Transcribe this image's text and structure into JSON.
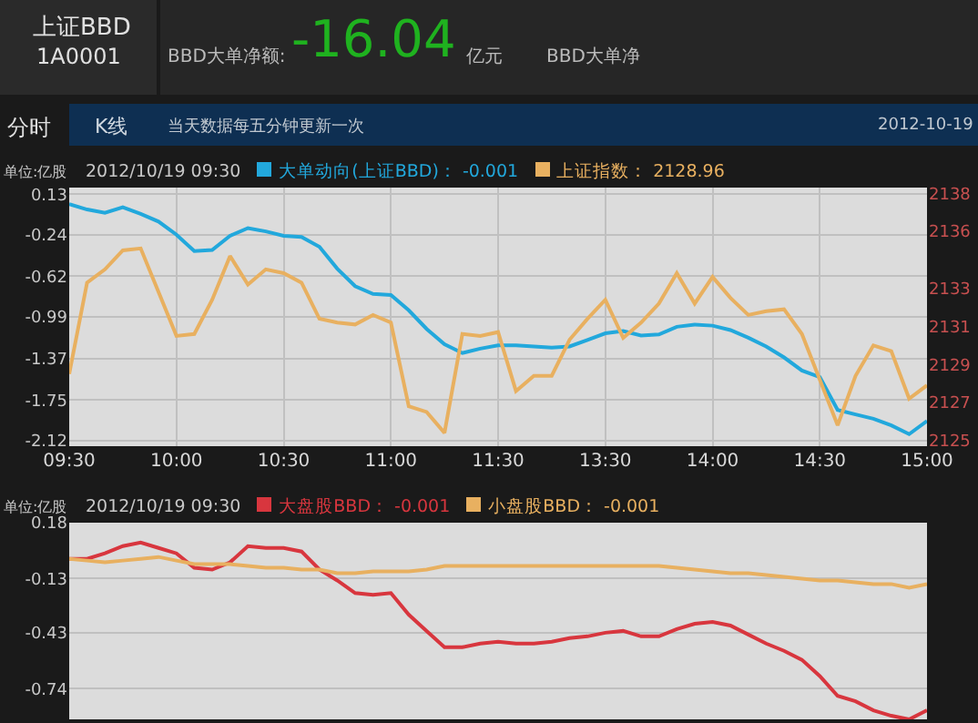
{
  "chart_data": [
    {
      "type": "other",
      "annotations": [
        "上证BBD",
        "1A0001",
        "BBD大单净额:",
        "-16.04",
        "亿元",
        "BBD大单净",
        "分时",
        "K线",
        "当天数据每五分钟更新一次",
        "2012-10-19"
      ]
    },
    {
      "type": "line",
      "ylabel": "单位:亿股",
      "legend_title": "2012/10/19 09:30",
      "legend": "top left",
      "grid": true,
      "marker": "none",
      "line_style": "solid",
      "categories": [
        "09:30",
        null,
        null,
        null,
        null,
        null,
        "10:00",
        null,
        null,
        null,
        null,
        null,
        "10:30",
        null,
        null,
        null,
        null,
        null,
        "11:00",
        null,
        null,
        null,
        null,
        null,
        "11:30",
        null,
        null,
        null,
        null,
        null,
        "13:30",
        null,
        null,
        null,
        null,
        null,
        "14:00",
        null,
        null,
        null,
        null,
        null,
        "14:30",
        null,
        null,
        null,
        null,
        null,
        "15:00"
      ],
      "ylim": [
        -2.17,
        0.19
      ],
      "yticks": [
        0.13,
        -0.24,
        -0.62,
        -0.99,
        -1.37,
        -1.75,
        -2.12
      ],
      "y2lim": [
        2124.7,
        2138.3
      ],
      "y2ticks": [
        2125,
        2127,
        2129,
        2131,
        2133,
        2136,
        2138
      ],
      "series": [
        {
          "name": "大单动向(上证BBD)： -0.001",
          "color": "#22a8dc",
          "values": [
            0.04,
            -0.01,
            -0.04,
            0.01,
            -0.05,
            -0.12,
            -0.24,
            -0.39,
            -0.38,
            -0.25,
            -0.18,
            -0.21,
            -0.25,
            -0.26,
            -0.35,
            -0.55,
            -0.71,
            -0.78,
            -0.79,
            -0.93,
            -1.1,
            -1.24,
            -1.32,
            -1.28,
            -1.25,
            -1.25,
            -1.26,
            -1.27,
            -1.26,
            -1.2,
            -1.14,
            -1.12,
            -1.16,
            -1.15,
            -1.08,
            -1.06,
            -1.07,
            -1.11,
            -1.18,
            -1.26,
            -1.36,
            -1.48,
            -1.54,
            -1.84,
            -1.88,
            -1.92,
            -1.98,
            -2.06,
            -1.94
          ]
        },
        {
          "name": "上证指数： 2128.96",
          "color": "#e8b060",
          "axis": "y2",
          "values": [
            2128.5,
            2133.3,
            2134.0,
            2135.0,
            2135.1,
            2132.8,
            2130.5,
            2130.6,
            2132.4,
            2134.7,
            2133.2,
            2134.0,
            2133.8,
            2133.3,
            2131.4,
            2131.2,
            2131.1,
            2131.6,
            2131.2,
            2126.8,
            2126.5,
            2125.4,
            2130.6,
            2130.5,
            2130.7,
            2127.6,
            2128.4,
            2128.4,
            2130.3,
            2131.4,
            2132.4,
            2130.4,
            2131.2,
            2132.2,
            2133.8,
            2132.2,
            2133.6,
            2132.5,
            2131.6,
            2131.8,
            2131.9,
            2130.6,
            2128.2,
            2125.8,
            2128.4,
            2130.0,
            2129.7,
            2127.2,
            2127.9
          ]
        }
      ]
    },
    {
      "type": "line",
      "ylabel": "单位:亿股",
      "legend_title": "2012/10/19 09:30",
      "legend": "top left",
      "grid": "y",
      "marker": "none",
      "line_style": "solid",
      "tick_labels": "y",
      "categories": [
        null,
        null,
        null,
        null,
        null,
        null,
        null,
        null,
        null,
        null,
        null,
        null,
        null,
        null,
        null,
        null,
        null,
        null,
        null,
        null,
        null,
        null,
        null,
        null,
        null,
        null,
        null,
        null,
        null,
        null,
        null,
        null,
        null,
        null,
        null,
        null,
        null,
        null,
        null,
        null,
        null,
        null,
        null,
        null,
        null,
        null,
        null,
        null,
        null
      ],
      "ylim": [
        -0.91,
        0.18
      ],
      "yticks": [
        0.18,
        -0.13,
        -0.43,
        -0.74
      ],
      "series": [
        {
          "name": "大盘股BBD： -0.001",
          "color": "#d8363e",
          "values": [
            -0.02,
            -0.02,
            0.01,
            0.05,
            0.07,
            0.04,
            0.01,
            -0.07,
            -0.08,
            -0.04,
            0.05,
            0.04,
            0.04,
            0.02,
            -0.08,
            -0.14,
            -0.21,
            -0.22,
            -0.21,
            -0.33,
            -0.42,
            -0.51,
            -0.51,
            -0.49,
            -0.48,
            -0.49,
            -0.49,
            -0.48,
            -0.46,
            -0.45,
            -0.43,
            -0.42,
            -0.45,
            -0.45,
            -0.41,
            -0.38,
            -0.37,
            -0.39,
            -0.44,
            -0.49,
            -0.53,
            -0.58,
            -0.67,
            -0.78,
            -0.81,
            -0.86,
            -0.89,
            -0.91,
            -0.86
          ]
        },
        {
          "name": "小盘股BBD： -0.001",
          "color": "#e8b060",
          "values": [
            -0.02,
            -0.03,
            -0.04,
            -0.03,
            -0.02,
            -0.01,
            -0.03,
            -0.05,
            -0.05,
            -0.05,
            -0.06,
            -0.07,
            -0.07,
            -0.08,
            -0.08,
            -0.1,
            -0.1,
            -0.09,
            -0.09,
            -0.09,
            -0.08,
            -0.06,
            -0.06,
            -0.06,
            -0.06,
            -0.06,
            -0.06,
            -0.06,
            -0.06,
            -0.06,
            -0.06,
            -0.06,
            -0.06,
            -0.06,
            -0.07,
            -0.08,
            -0.09,
            -0.1,
            -0.1,
            -0.11,
            -0.12,
            -0.13,
            -0.14,
            -0.14,
            -0.15,
            -0.16,
            -0.16,
            -0.18,
            -0.16
          ]
        }
      ]
    }
  ]
}
